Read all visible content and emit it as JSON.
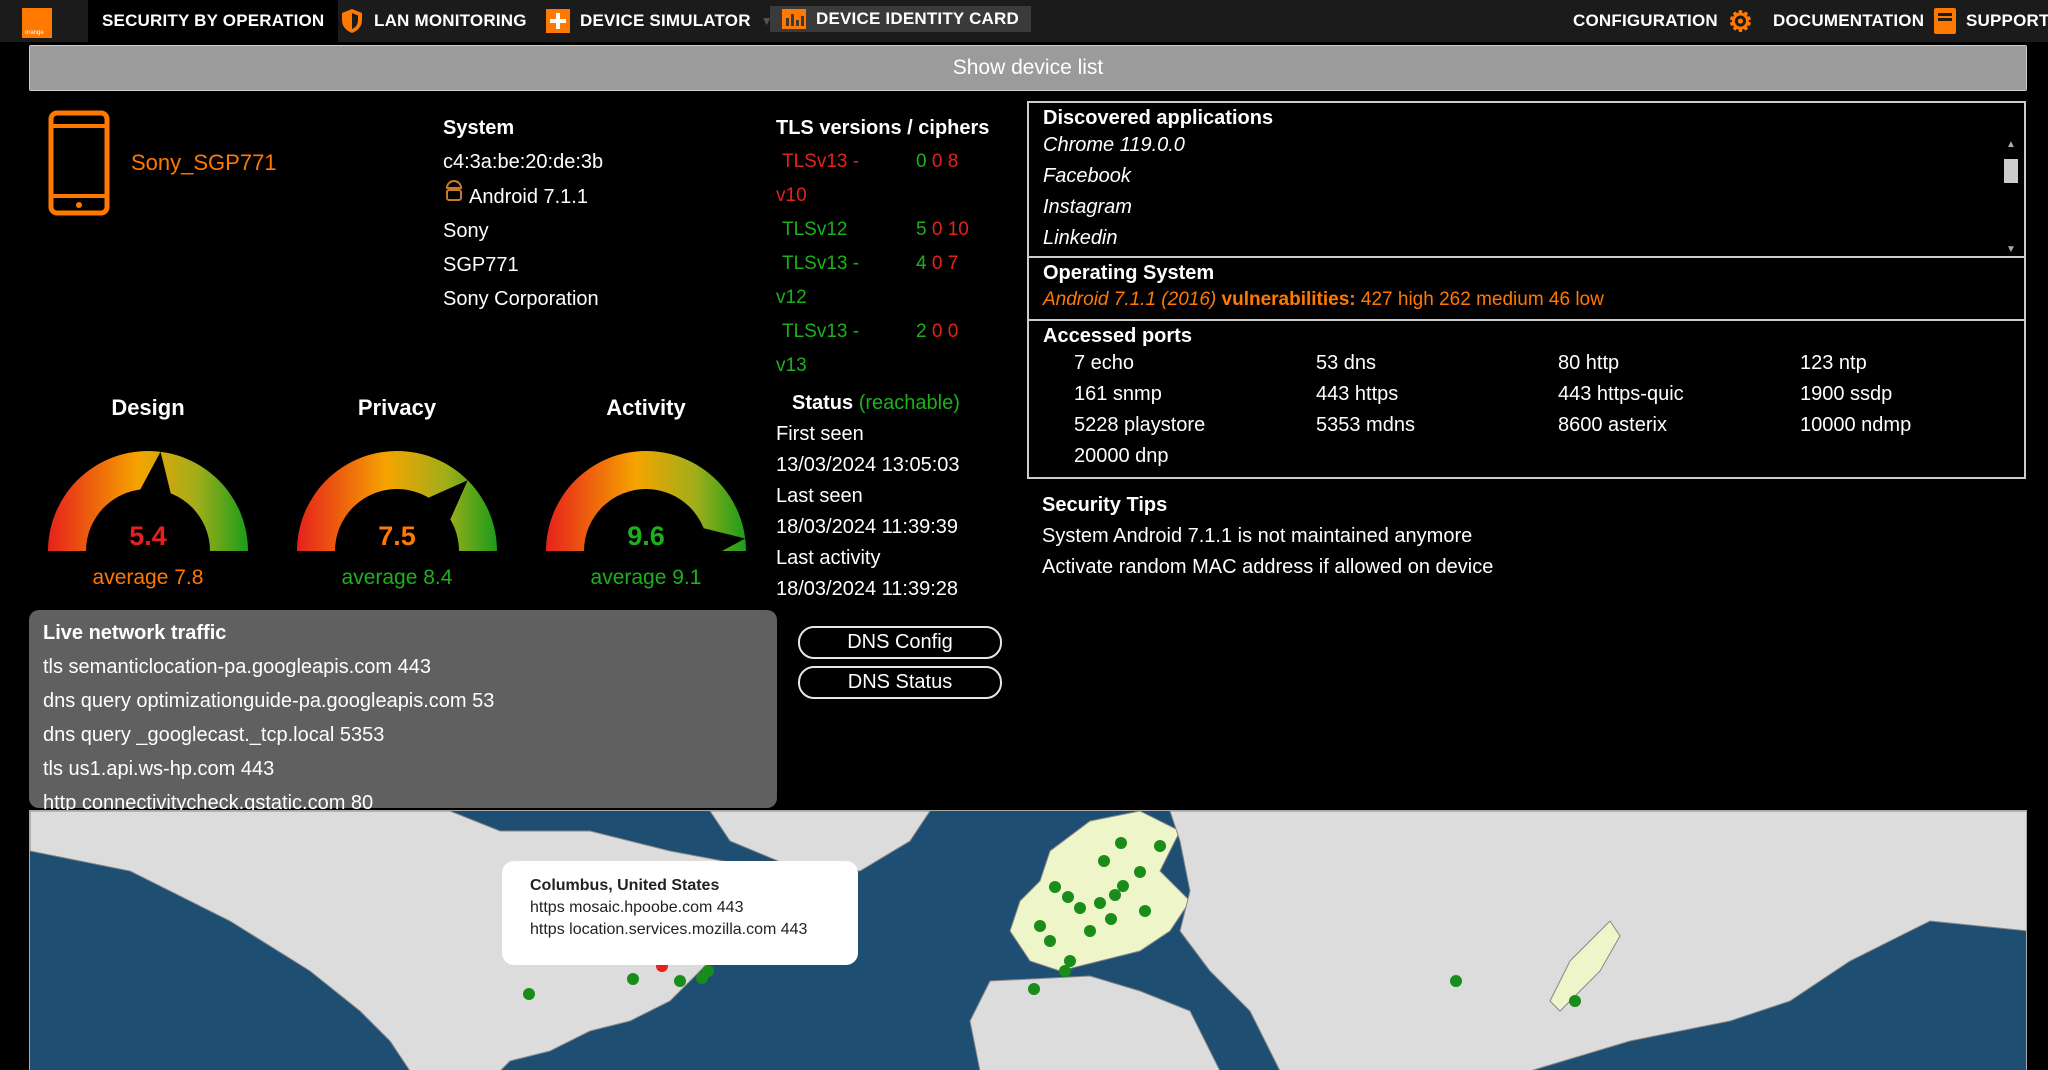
{
  "nav": {
    "logo_text": "orange",
    "items": [
      {
        "label": "SECURITY BY OPERATION",
        "icon": "none"
      },
      {
        "label": "LAN MONITORING",
        "icon": "shield-icon"
      },
      {
        "label": "DEVICE SIMULATOR",
        "icon": "plus-icon"
      },
      {
        "label": "DEVICE IDENTITY CARD",
        "icon": "chart-icon"
      },
      {
        "label": "CONFIGURATION",
        "icon": "gear-icon"
      },
      {
        "label": "DOCUMENTATION",
        "icon": "book-icon"
      },
      {
        "label": "SUPPORT",
        "icon": "none"
      }
    ]
  },
  "show_list_label": "Show device list",
  "device": {
    "name": "Sony_SGP771",
    "icon": "phone-icon"
  },
  "system": {
    "title": "System",
    "mac": "c4:3a:be:20:de:3b",
    "os": "Android 7.1.1",
    "vendor": "Sony",
    "model": "SGP771",
    "corp": "Sony Corporation"
  },
  "tls": {
    "title": "TLS versions / ciphers",
    "rows": [
      {
        "l1": "TLSv13 -",
        "l2": "v10",
        "a": "0",
        "b": "0",
        "c": "8",
        "color": "#e6211b"
      },
      {
        "l1": "TLSv12",
        "l2": "",
        "a": "5",
        "b": "0",
        "c": "10",
        "color": "#1cb11c"
      },
      {
        "l1": "TLSv13 -",
        "l2": "v12",
        "a": "4",
        "b": "0",
        "c": "7",
        "color": "#1cb11c"
      },
      {
        "l1": "TLSv13 -",
        "l2": "v13",
        "a": "2",
        "b": "0",
        "c": "0",
        "color": "#1cb11c"
      }
    ]
  },
  "gauges": [
    {
      "title": "Design",
      "value": "5.4",
      "avg": "average 7.8",
      "score": 5.4,
      "value_color": "#e6211b",
      "avg_color": "#ff7900"
    },
    {
      "title": "Privacy",
      "value": "7.5",
      "avg": "average 8.4",
      "score": 7.5,
      "value_color": "#ff7900",
      "avg_color": "#1cb11c"
    },
    {
      "title": "Activity",
      "value": "9.6",
      "avg": "average 9.1",
      "score": 9.6,
      "value_color": "#1cb11c",
      "avg_color": "#1cb11c"
    }
  ],
  "status": {
    "title": "Status",
    "state": "(reachable)",
    "first_seen_label": "First seen",
    "first_seen": "13/03/2024 13:05:03",
    "last_seen_label": "Last seen",
    "last_seen": "18/03/2024 11:39:39",
    "last_activity_label": "Last activity",
    "last_activity": "18/03/2024 11:39:28"
  },
  "buttons": {
    "dns_config": "DNS Config",
    "dns_status": "DNS Status"
  },
  "apps": {
    "title": "Discovered applications",
    "items": [
      "Chrome 119.0.0",
      "Facebook",
      "Instagram",
      "Linkedin"
    ]
  },
  "os_panel": {
    "title": "Operating System",
    "text": "Android 7.1.1 (2016)",
    "vuln_label": "vulnerabilities:",
    "vuln_text": "427 high 262 medium 46 low"
  },
  "ports": {
    "title": "Accessed ports",
    "items": [
      "7 echo",
      "53 dns",
      "80 http",
      "123 ntp",
      "161 snmp",
      "443 https",
      "443 https-quic",
      "1900 ssdp",
      "5228 playstore",
      "5353 mdns",
      "8600 asterix",
      "10000 ndmp",
      "20000 dnp"
    ]
  },
  "tips": {
    "title": "Security Tips",
    "items": [
      "System Android 7.1.1 is not maintained anymore",
      "Activate random MAC address if allowed on device"
    ]
  },
  "traffic": {
    "title": "Live network traffic",
    "items": [
      "tls semanticlocation-pa.googleapis.com 443",
      "dns query optimizationguide-pa.googleapis.com 53",
      "dns query _googlecast._tcp.local 5353",
      "tls us1.api.ws-hp.com 443",
      "http connectivitycheck.gstatic.com 80"
    ]
  },
  "map_tooltip": {
    "title": "Columbus, United States",
    "lines": [
      "https mosaic.hpoobe.com 443",
      "https location.services.mozilla.com 443"
    ]
  },
  "colors": {
    "accent": "#ff7900",
    "good": "#1cb11c",
    "bad": "#e6211b"
  }
}
